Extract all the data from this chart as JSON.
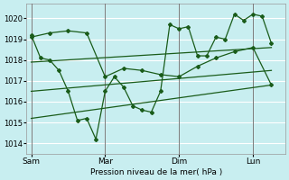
{
  "xlabel": "Pression niveau de la mer( hPa )",
  "bg_color": "#c8eef0",
  "grid_color": "#ffffff",
  "line_color": "#1a5c1a",
  "ylim": [
    1013.5,
    1020.7
  ],
  "yticks": [
    1014,
    1015,
    1016,
    1017,
    1018,
    1019,
    1020
  ],
  "xtick_labels": [
    "Sam",
    "Mar",
    "Dim",
    "Lun"
  ],
  "xtick_positions": [
    0,
    8,
    16,
    24
  ],
  "vline_positions": [
    0,
    8,
    16,
    24
  ],
  "xlim": [
    -0.5,
    27.5
  ],
  "series1_x": [
    0,
    1,
    2,
    3,
    4,
    5,
    6,
    7,
    8,
    9,
    10,
    11,
    12,
    13,
    14,
    15,
    16,
    17,
    18,
    19,
    20,
    21,
    22,
    23,
    24,
    25,
    26
  ],
  "series1_y": [
    1019.2,
    1018.1,
    1018.0,
    1017.5,
    1016.5,
    1015.1,
    1015.2,
    1014.2,
    1016.5,
    1017.2,
    1016.7,
    1015.8,
    1015.6,
    1015.5,
    1016.5,
    1019.7,
    1019.5,
    1019.6,
    1018.2,
    1018.2,
    1019.1,
    1019.0,
    1020.2,
    1019.9,
    1020.2,
    1020.1,
    1018.8
  ],
  "series2_x": [
    0,
    2,
    4,
    6,
    8,
    10,
    12,
    14,
    16,
    18,
    20,
    22,
    24,
    26
  ],
  "series2_y": [
    1019.1,
    1019.3,
    1019.4,
    1019.3,
    1017.2,
    1017.6,
    1017.5,
    1017.3,
    1017.2,
    1017.7,
    1018.1,
    1018.4,
    1018.6,
    1016.8
  ],
  "series3_x": [
    0,
    26
  ],
  "series3_y": [
    1017.9,
    1018.6
  ],
  "series4_x": [
    0,
    26
  ],
  "series4_y": [
    1016.5,
    1017.5
  ],
  "series5_x": [
    0,
    26
  ],
  "series5_y": [
    1015.2,
    1016.8
  ]
}
